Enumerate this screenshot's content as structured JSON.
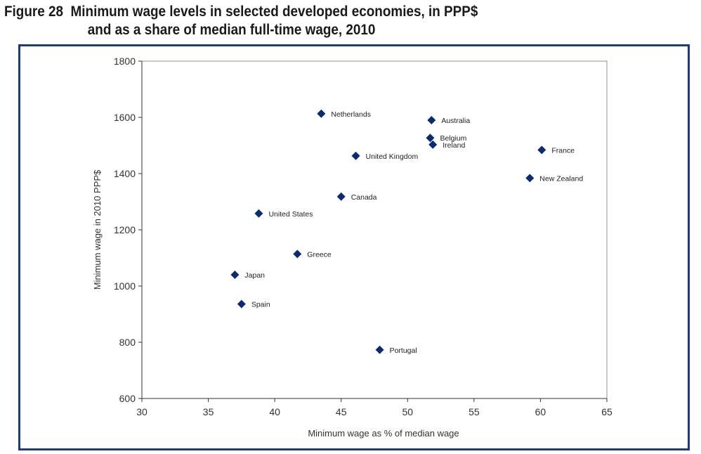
{
  "figure": {
    "label": "Figure 28",
    "title_line1": "Minimum wage levels in selected developed economies, in PPP$",
    "title_line2": "and as a share of median full-time wage, 2010"
  },
  "colors": {
    "marker": "#0b2a6f",
    "frame": "#1f3c74",
    "axis": "#333333"
  },
  "chart_data": {
    "type": "scatter",
    "xlabel": "Minimum wage as % of median wage",
    "ylabel": "Minimum wage in 2010 PPP$",
    "xlim": [
      30,
      65
    ],
    "ylim": [
      600,
      1800
    ],
    "xticks": [
      30,
      35,
      40,
      45,
      50,
      55,
      60,
      65
    ],
    "yticks": [
      600,
      800,
      1000,
      1200,
      1400,
      1600,
      1800
    ],
    "grid": false,
    "legend": "none",
    "marker": "diamond",
    "points": [
      {
        "label": "Netherlands",
        "x": 43.5,
        "y": 1613
      },
      {
        "label": "Australia",
        "x": 51.8,
        "y": 1590
      },
      {
        "label": "Belgium",
        "x": 51.7,
        "y": 1527
      },
      {
        "label": "Ireland",
        "x": 51.9,
        "y": 1503
      },
      {
        "label": "France",
        "x": 60.1,
        "y": 1484
      },
      {
        "label": "United Kingdom",
        "x": 46.1,
        "y": 1463
      },
      {
        "label": "New Zealand",
        "x": 59.2,
        "y": 1384
      },
      {
        "label": "Canada",
        "x": 45.0,
        "y": 1318
      },
      {
        "label": "United States",
        "x": 38.8,
        "y": 1258
      },
      {
        "label": "Greece",
        "x": 41.7,
        "y": 1114
      },
      {
        "label": "Japan",
        "x": 37.0,
        "y": 1040
      },
      {
        "label": "Spain",
        "x": 37.5,
        "y": 936
      },
      {
        "label": "Portugal",
        "x": 47.9,
        "y": 773
      }
    ]
  }
}
